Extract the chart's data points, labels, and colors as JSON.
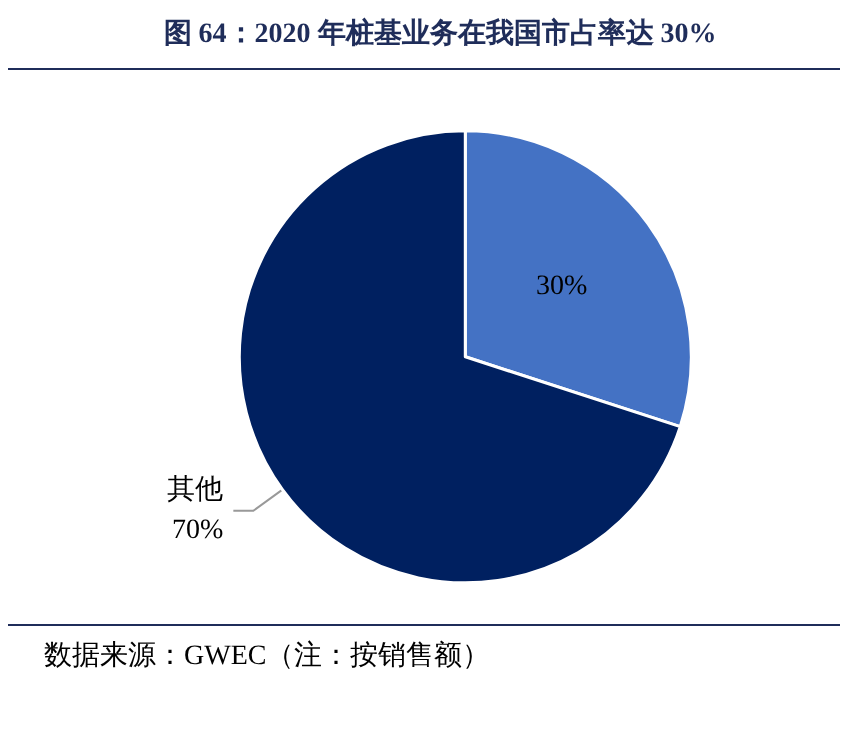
{
  "chart_data": {
    "type": "pie",
    "title": "图 64：2020 年桩基业务在我国市占率达 30%",
    "categories": [
      null,
      "其他"
    ],
    "values": [
      30,
      70
    ],
    "value_labels": [
      "30%",
      "70%"
    ],
    "colors": [
      "#4472c4",
      "#002060"
    ],
    "legend": false,
    "annotations": [
      "数据来源：GWEC（注：按销售额）"
    ]
  }
}
